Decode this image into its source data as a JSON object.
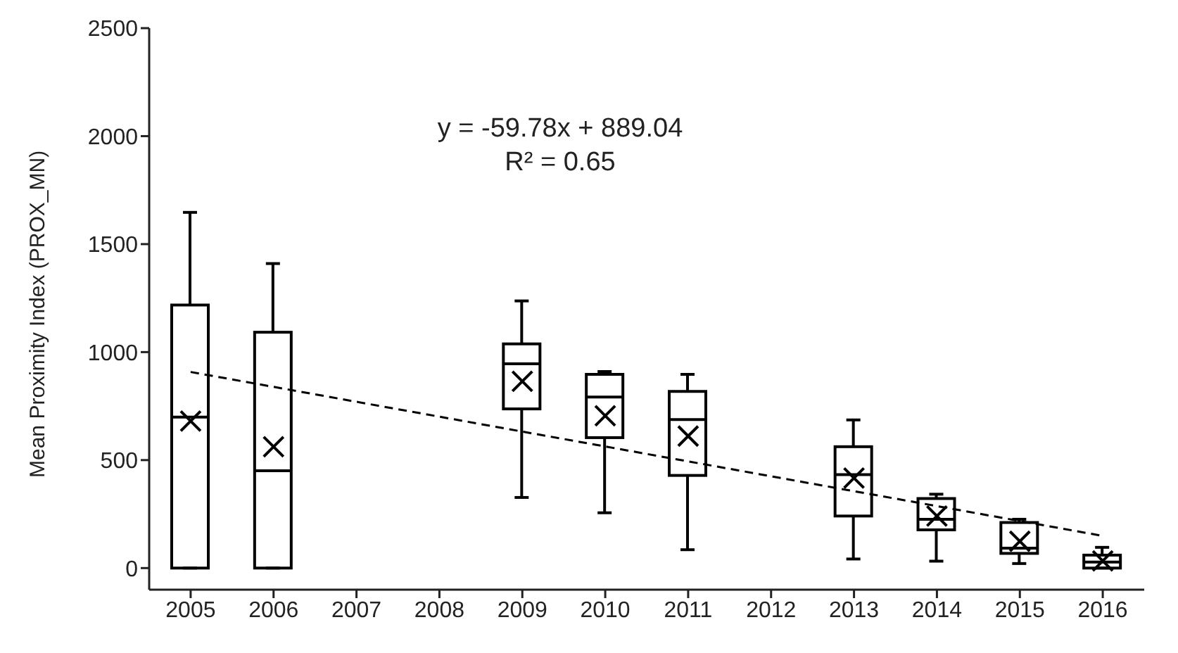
{
  "chart_data": {
    "type": "box",
    "ylabel": "Mean Proximity Index (PROX_MN)",
    "categories": [
      "2005",
      "2006",
      "2007",
      "2008",
      "2009",
      "2010",
      "2011",
      "2012",
      "2013",
      "2014",
      "2015",
      "2016"
    ],
    "boxes": [
      {
        "low": 0,
        "q1": 0,
        "median": 699,
        "q3": 1218,
        "high": 1647,
        "mean": 681
      },
      {
        "low": 0,
        "q1": 0,
        "median": 451,
        "q3": 1092,
        "high": 1410,
        "mean": 562
      },
      null,
      null,
      {
        "low": 327,
        "q1": 737,
        "median": 946,
        "q3": 1038,
        "high": 1237,
        "mean": 865
      },
      {
        "low": 256,
        "q1": 604,
        "median": 792,
        "q3": 897,
        "high": 910,
        "mean": 705
      },
      {
        "low": 85,
        "q1": 429,
        "median": 688,
        "q3": 818,
        "high": 897,
        "mean": 611
      },
      null,
      {
        "low": 42,
        "q1": 241,
        "median": 433,
        "q3": 562,
        "high": 686,
        "mean": 417
      },
      {
        "low": 32,
        "q1": 177,
        "median": 226,
        "q3": 322,
        "high": 342,
        "mean": 241
      },
      {
        "low": 21,
        "q1": 68,
        "median": 92,
        "q3": 211,
        "high": 226,
        "mean": 124
      },
      {
        "low": 0,
        "q1": 0,
        "median": 28,
        "q3": 60,
        "high": 96,
        "mean": 33
      }
    ],
    "series": [
      {
        "type": "line",
        "values": [
          908,
          839,
          770,
          701,
          632,
          563,
          494,
          425,
          356,
          287,
          218,
          149
        ],
        "color": "#000000",
        "line_style": "dashed",
        "marker": "none"
      }
    ],
    "color": "#000000",
    "ylim": [
      -100,
      2500
    ],
    "yticks": [
      0,
      500,
      1000,
      1500,
      2000,
      2500
    ],
    "annotations": [
      "y = -59.78x + 889.04",
      "R² = 0.65"
    ]
  }
}
